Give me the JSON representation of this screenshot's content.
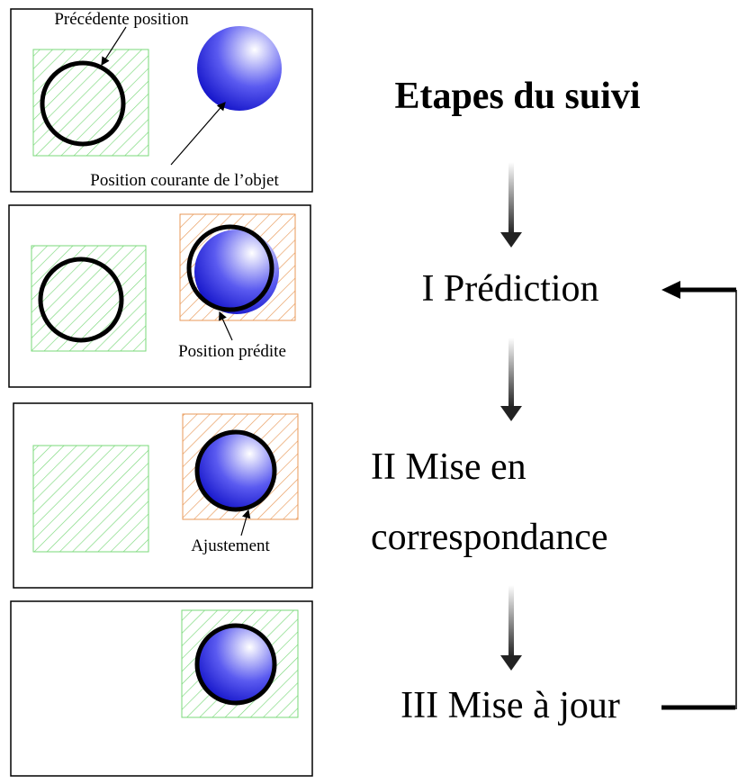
{
  "title": "Etapes du suivi",
  "panels": [
    {
      "labels": [
        "Précédente position",
        "Position courante de l’objet"
      ]
    },
    {
      "labels": [
        "Position prédite"
      ]
    },
    {
      "labels": [
        "Ajustement"
      ]
    },
    {
      "labels": []
    }
  ],
  "steps": [
    {
      "lines": [
        "I Prédiction"
      ]
    },
    {
      "lines": [
        "II Mise en",
        "correspondance"
      ]
    },
    {
      "lines": [
        "III Mise à jour"
      ]
    }
  ]
}
